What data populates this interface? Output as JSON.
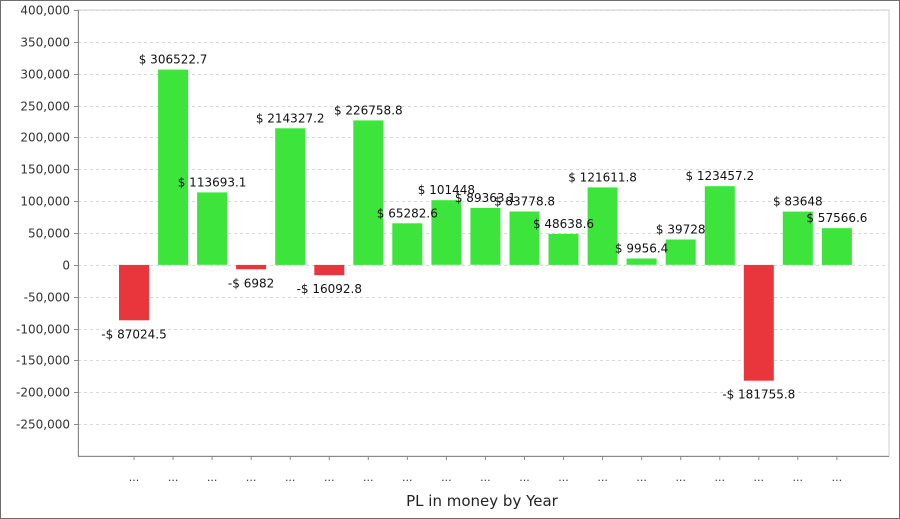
{
  "chart_data": {
    "type": "bar",
    "title": "",
    "xlabel": "PL in money by Year",
    "ylabel": "",
    "ylim": [
      -300000,
      400000
    ],
    "yticks": [
      400000,
      350000,
      300000,
      250000,
      200000,
      150000,
      100000,
      50000,
      0,
      -50000,
      -100000,
      -150000,
      -200000,
      -250000
    ],
    "ytick_labels": [
      "400,000",
      "350,000",
      "300,000",
      "250,000",
      "200,000",
      "150,000",
      "100,000",
      "50,000",
      "0",
      "-50,000",
      "-100,000",
      "-150,000",
      "-200,000",
      "-250,000"
    ],
    "grid": true,
    "legend": "none",
    "categories": [
      "...",
      "...",
      "...",
      "...",
      "...",
      "...",
      "...",
      "...",
      "...",
      "...",
      "...",
      "...",
      "...",
      "...",
      "...",
      "...",
      "...",
      "...",
      "..."
    ],
    "values": [
      -87024.5,
      306522.7,
      113693.1,
      -6982,
      214327.2,
      -16092.8,
      226758.8,
      65282.6,
      101448,
      89363.1,
      83778.8,
      48638.6,
      121611.8,
      9956.4,
      39728,
      123457.2,
      -181755.8,
      83648,
      57566.6
    ],
    "data_labels": [
      "-$ 87024.5",
      "$ 306522.7",
      "$ 113693.1",
      "-$ 6982",
      "$ 214327.2",
      "-$ 16092.8",
      "$ 226758.8",
      "$ 65282.6",
      "$ 101448",
      "$ 89363.1",
      "$ 83778.8",
      "$ 48638.6",
      "$ 121611.8",
      "$ 9956.4",
      "$ 39728",
      "$ 123457.2",
      "-$ 181755.8",
      "$ 83648",
      "$ 57566.6"
    ],
    "colors": {
      "positive": "#3ce43c",
      "negative": "#e8363c",
      "grid": "#d8d8d8",
      "axis": "#888888"
    }
  }
}
